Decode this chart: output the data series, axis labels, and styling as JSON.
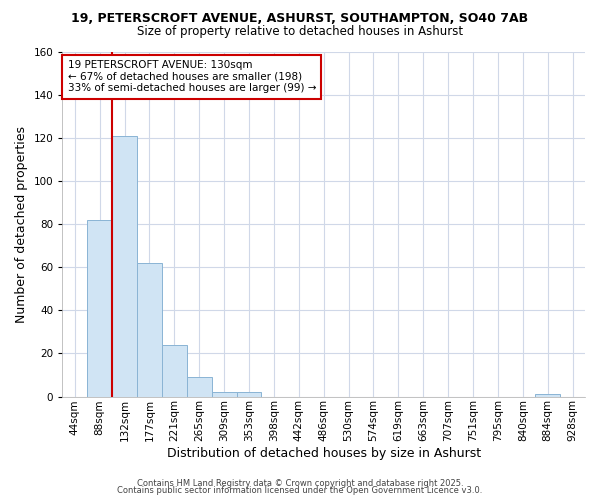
{
  "title1": "19, PETERSCROFT AVENUE, ASHURST, SOUTHAMPTON, SO40 7AB",
  "title2": "Size of property relative to detached houses in Ashurst",
  "xlabel": "Distribution of detached houses by size in Ashurst",
  "ylabel": "Number of detached properties",
  "categories": [
    "44sqm",
    "88sqm",
    "132sqm",
    "177sqm",
    "221sqm",
    "265sqm",
    "309sqm",
    "353sqm",
    "398sqm",
    "442sqm",
    "486sqm",
    "530sqm",
    "574sqm",
    "619sqm",
    "663sqm",
    "707sqm",
    "751sqm",
    "795sqm",
    "840sqm",
    "884sqm",
    "928sqm"
  ],
  "values": [
    0,
    82,
    121,
    62,
    24,
    9,
    2,
    2,
    0,
    0,
    0,
    0,
    0,
    0,
    0,
    0,
    0,
    0,
    0,
    1,
    0
  ],
  "bar_color": "#d0e4f4",
  "bar_edge_color": "#8ab4d4",
  "red_line_index": 2,
  "ylim": [
    0,
    160
  ],
  "yticks": [
    0,
    20,
    40,
    60,
    80,
    100,
    120,
    140,
    160
  ],
  "annotation_title": "19 PETERSCROFT AVENUE: 130sqm",
  "annotation_line1": "← 67% of detached houses are smaller (198)",
  "annotation_line2": "33% of semi-detached houses are larger (99) →",
  "footer1": "Contains HM Land Registry data © Crown copyright and database right 2025.",
  "footer2": "Contains public sector information licensed under the Open Government Licence v3.0.",
  "bg_color": "#ffffff",
  "grid_color": "#d0d8e8",
  "annotation_box_color": "#ffffff",
  "annotation_box_edge": "#cc0000",
  "red_line_color": "#cc0000"
}
